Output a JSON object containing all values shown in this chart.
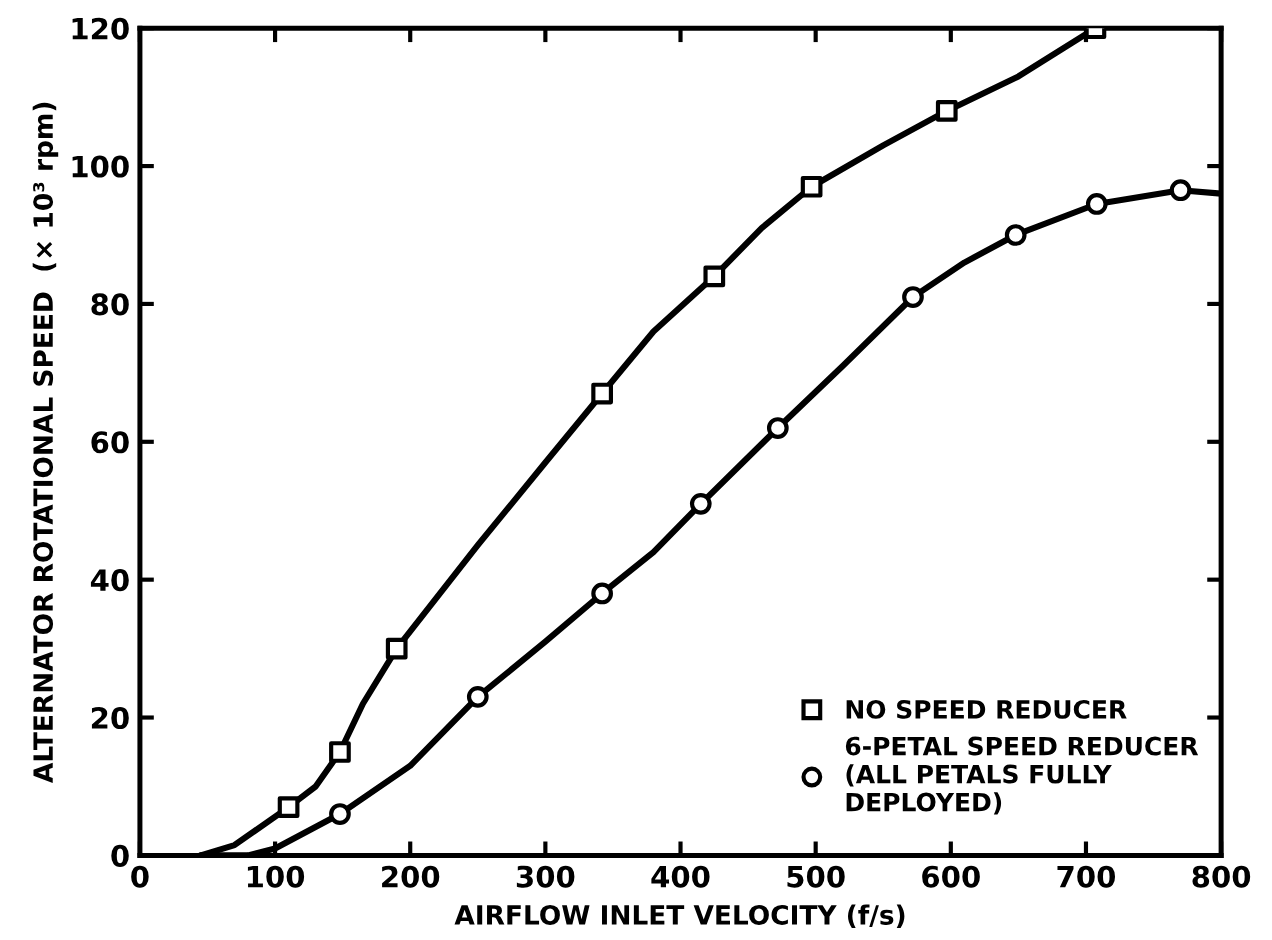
{
  "chart_data": {
    "type": "line",
    "xlabel": "AIRFLOW INLET VELOCITY (f/s)",
    "ylabel": "ALTERNATOR ROTATIONAL SPEED  (× 10³ rpm)",
    "xlim": [
      0,
      800
    ],
    "ylim": [
      0,
      120
    ],
    "xticks": [
      0,
      100,
      200,
      300,
      400,
      500,
      600,
      700,
      800
    ],
    "yticks": [
      0,
      20,
      40,
      60,
      80,
      100,
      120
    ],
    "grid": false,
    "legend": "bottom right",
    "series": [
      {
        "marker": "none",
        "color": "#000000",
        "x": [
          45,
          70,
          110,
          130,
          148,
          165,
          190,
          250,
          300,
          342,
          380,
          425,
          460,
          497,
          550,
          597,
          650,
          707
        ],
        "values": [
          0,
          1.5,
          7,
          10,
          15,
          22,
          30,
          45,
          57,
          67,
          76,
          84,
          91,
          97,
          103,
          108,
          113,
          120
        ]
      },
      {
        "marker": "none",
        "color": "#000000",
        "x": [
          45,
          80,
          100,
          148,
          200,
          250,
          300,
          342,
          380,
          415,
          472,
          520,
          572,
          610,
          648,
          708,
          770,
          800
        ],
        "values": [
          0,
          0,
          1,
          6,
          13,
          23,
          31,
          38,
          44,
          51,
          62,
          71,
          81,
          86,
          90,
          94.5,
          96.5,
          96
        ]
      },
      {
        "type": "scatter",
        "marker": "square",
        "color": "#000000",
        "name": "NO SPEED REDUCER",
        "x": [
          110,
          148,
          190,
          342,
          425,
          497,
          597,
          707
        ],
        "values": [
          7,
          15,
          30,
          67,
          84,
          97,
          108,
          120
        ]
      },
      {
        "type": "scatter",
        "marker": "circle",
        "color": "#000000",
        "name": "6-PETAL SPEED REDUCER\n(ALL PETALS FULLY\nDEPLOYED)",
        "x": [
          148,
          250,
          342,
          415,
          472,
          572,
          648,
          708,
          770
        ],
        "values": [
          6,
          23,
          38,
          51,
          62,
          81,
          90,
          94.5,
          96.5
        ]
      }
    ]
  }
}
